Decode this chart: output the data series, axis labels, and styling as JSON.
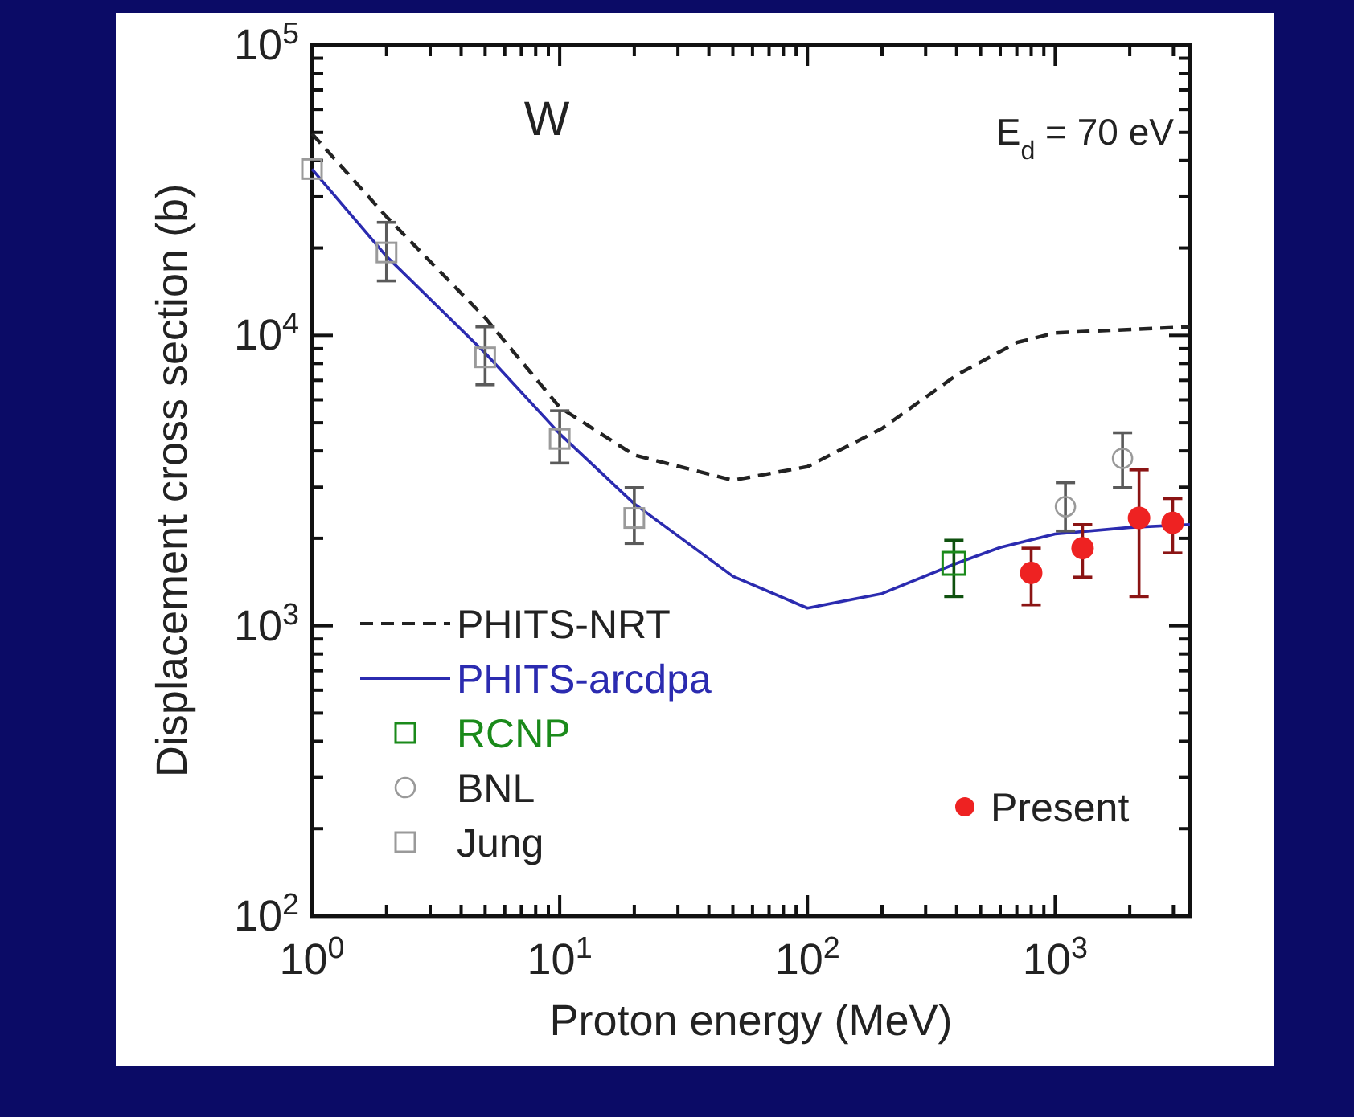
{
  "chart_data": {
    "type": "line",
    "xlabel": "Proton energy (MeV)",
    "ylabel": "Displacement cross section (b)",
    "log": "xy",
    "xlim": [
      1,
      3500
    ],
    "ylim": [
      100,
      100000
    ],
    "xticks": [
      {
        "value": 1,
        "label": "10$^{0}$"
      },
      {
        "value": 2,
        "label": null
      },
      {
        "value": 3,
        "label": null
      },
      {
        "value": 4,
        "label": null
      },
      {
        "value": 5,
        "label": null
      },
      {
        "value": 6,
        "label": null
      },
      {
        "value": 7,
        "label": null
      },
      {
        "value": 8,
        "label": null
      },
      {
        "value": 9,
        "label": null
      },
      {
        "value": 10,
        "label": "10$^{1}$"
      },
      {
        "value": 20,
        "label": null
      },
      {
        "value": 30,
        "label": null
      },
      {
        "value": 40,
        "label": null
      },
      {
        "value": 50,
        "label": null
      },
      {
        "value": 60,
        "label": null
      },
      {
        "value": 70,
        "label": null
      },
      {
        "value": 80,
        "label": null
      },
      {
        "value": 90,
        "label": null
      },
      {
        "value": 100,
        "label": "10$^{2}$"
      },
      {
        "value": 200,
        "label": null
      },
      {
        "value": 300,
        "label": null
      },
      {
        "value": 400,
        "label": null
      },
      {
        "value": 500,
        "label": null
      },
      {
        "value": 600,
        "label": null
      },
      {
        "value": 700,
        "label": null
      },
      {
        "value": 800,
        "label": null
      },
      {
        "value": 900,
        "label": null
      },
      {
        "value": 1000,
        "label": "10$^{3}$"
      },
      {
        "value": 2000,
        "label": null
      },
      {
        "value": 3000,
        "label": null
      }
    ],
    "yticks": [
      {
        "value": 100,
        "label": "10$^{2}$"
      },
      {
        "value": 200,
        "label": null
      },
      {
        "value": 300,
        "label": null
      },
      {
        "value": 400,
        "label": null
      },
      {
        "value": 500,
        "label": null
      },
      {
        "value": 600,
        "label": null
      },
      {
        "value": 700,
        "label": null
      },
      {
        "value": 800,
        "label": null
      },
      {
        "value": 900,
        "label": null
      },
      {
        "value": 1000,
        "label": "10$^{3}$"
      },
      {
        "value": 2000,
        "label": null
      },
      {
        "value": 3000,
        "label": null
      },
      {
        "value": 4000,
        "label": null
      },
      {
        "value": 5000,
        "label": null
      },
      {
        "value": 6000,
        "label": null
      },
      {
        "value": 7000,
        "label": null
      },
      {
        "value": 8000,
        "label": null
      },
      {
        "value": 9000,
        "label": null
      },
      {
        "value": 10000,
        "label": "10$^{4}$"
      },
      {
        "value": 20000,
        "label": null
      },
      {
        "value": 30000,
        "label": null
      },
      {
        "value": 40000,
        "label": null
      },
      {
        "value": 50000,
        "label": null
      },
      {
        "value": 60000,
        "label": null
      },
      {
        "value": 70000,
        "label": null
      },
      {
        "value": 80000,
        "label": null
      },
      {
        "value": 90000,
        "label": null
      },
      {
        "value": 100000,
        "label": "10$^{5}$"
      }
    ],
    "legend": "bottom left",
    "annotations": [
      "W",
      "E$_{d}$ = 70 eV"
    ],
    "series": [
      {
        "name": "PHITS-NRT",
        "line_style": "dashed",
        "color": "#222222",
        "x": [
          1,
          2,
          5,
          10,
          20,
          50,
          100,
          200,
          400,
          700,
          1000,
          3500
        ],
        "values": [
          49500,
          25600,
          11500,
          5650,
          3870,
          3170,
          3530,
          4780,
          7300,
          9450,
          10200,
          10700
        ]
      },
      {
        "name": "PHITS-arcdpa",
        "line_style": "solid",
        "color": "#2b2bb0",
        "x": [
          1,
          2,
          5,
          10,
          20,
          50,
          100,
          200,
          400,
          600,
          1000,
          2000,
          3500
        ],
        "values": [
          37400,
          18700,
          8700,
          4580,
          2630,
          1480,
          1150,
          1290,
          1640,
          1860,
          2070,
          2180,
          2230
        ]
      },
      {
        "name": "RCNP",
        "type": "scatter",
        "marker": "square",
        "color": "#1a8a1a",
        "x": [
          390
        ],
        "values": [
          1640
        ],
        "errors": [
          [
            1260,
            1970
          ]
        ]
      },
      {
        "name": "BNL",
        "type": "scatter",
        "marker": "circle",
        "color": "#9a9a9a",
        "x": [
          1100,
          1870
        ],
        "values": [
          2570,
          3770
        ],
        "errors": [
          [
            2120,
            3110
          ],
          [
            2990,
            4620
          ]
        ]
      },
      {
        "name": "Jung",
        "type": "scatter",
        "marker": "square",
        "color": "#9a9a9a",
        "x": [
          1,
          2,
          5,
          10,
          20
        ],
        "values": [
          37400,
          19300,
          8400,
          4400,
          2350
        ],
        "errors": [
          null,
          [
            15400,
            24500
          ],
          [
            6760,
            10700
          ],
          [
            3630,
            5500
          ],
          [
            1920,
            2990
          ]
        ]
      },
      {
        "name": "Present",
        "type": "scatter",
        "marker": "circle",
        "color": "#ee2222",
        "x": [
          800,
          1290,
          2180,
          2980
        ],
        "values": [
          1520,
          1850,
          2350,
          2260
        ],
        "errors": [
          [
            1180,
            1850
          ],
          [
            1470,
            2230
          ],
          [
            1260,
            3440
          ],
          [
            1780,
            2740
          ]
        ]
      }
    ]
  }
}
